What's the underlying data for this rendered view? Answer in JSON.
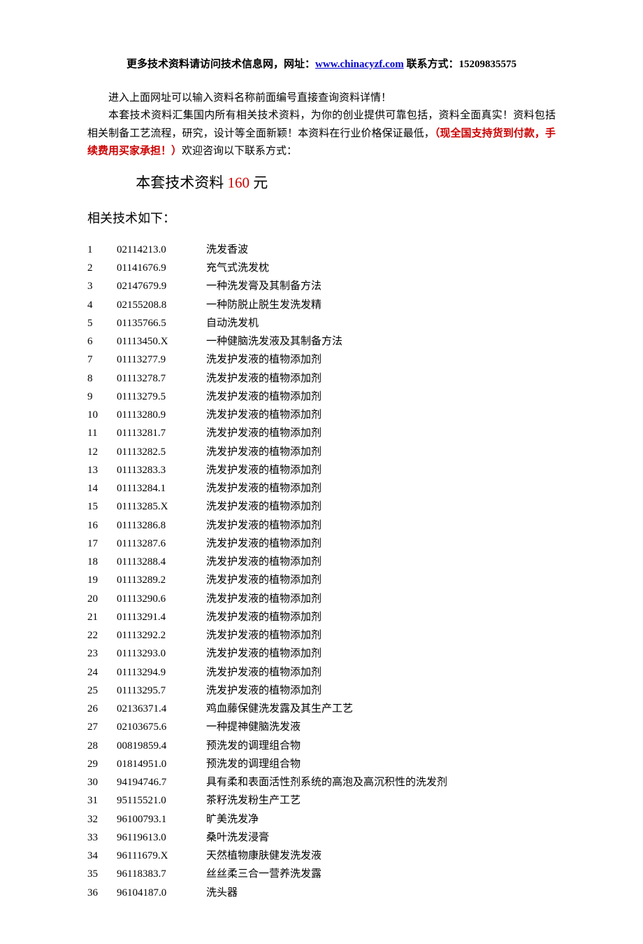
{
  "header": {
    "prefix": "更多技术资料请访问技术信息网，网址：",
    "link_text": "www.chinacyzf.com",
    "contact_label": " 联系方式：",
    "phone": "15209835575"
  },
  "intro": {
    "p1": "进入上面网址可以输入资料名称前面编号直接查询资料详情！",
    "p2a": "本套技术资料汇集国内所有相关技术资料，为你的创业提供可靠包括，资料全面真实！资料包括相关制备工艺流程，研究，设计等全面新颖！本资料在行业价格保证最低，",
    "p2_red": "（现全国支持货到付款，手续费用买家承担！）",
    "p2b": "欢迎咨询以下联系方式：",
    "price_prefix": "本套技术资料 ",
    "price_value": "160",
    "price_suffix": " 元",
    "subhead": "相关技术如下："
  },
  "rows": [
    {
      "n": "1",
      "code": "02114213.0",
      "title": "洗发香波"
    },
    {
      "n": "2",
      "code": "01141676.9",
      "title": "充气式洗发枕"
    },
    {
      "n": "3",
      "code": "02147679.9",
      "title": "一种洗发膏及其制备方法"
    },
    {
      "n": "4",
      "code": "02155208.8",
      "title": "一种防脱止脱生发洗发精"
    },
    {
      "n": "5",
      "code": "01135766.5",
      "title": "自动洗发机"
    },
    {
      "n": "6",
      "code": "01113450.X",
      "title": "一种健脑洗发液及其制备方法"
    },
    {
      "n": "7",
      "code": "01113277.9",
      "title": "洗发护发液的植物添加剂"
    },
    {
      "n": "8",
      "code": "01113278.7",
      "title": "洗发护发液的植物添加剂"
    },
    {
      "n": "9",
      "code": "01113279.5",
      "title": "洗发护发液的植物添加剂"
    },
    {
      "n": "10",
      "code": "01113280.9",
      "title": "洗发护发液的植物添加剂"
    },
    {
      "n": "11",
      "code": "01113281.7",
      "title": "洗发护发液的植物添加剂"
    },
    {
      "n": "12",
      "code": "01113282.5",
      "title": "洗发护发液的植物添加剂"
    },
    {
      "n": "13",
      "code": "01113283.3",
      "title": "洗发护发液的植物添加剂"
    },
    {
      "n": "14",
      "code": "01113284.1",
      "title": "洗发护发液的植物添加剂"
    },
    {
      "n": "15",
      "code": "01113285.X",
      "title": "洗发护发液的植物添加剂"
    },
    {
      "n": "16",
      "code": "01113286.8",
      "title": "洗发护发液的植物添加剂"
    },
    {
      "n": "17",
      "code": "01113287.6",
      "title": "洗发护发液的植物添加剂"
    },
    {
      "n": "18",
      "code": "01113288.4",
      "title": "洗发护发液的植物添加剂"
    },
    {
      "n": "19",
      "code": "01113289.2",
      "title": "洗发护发液的植物添加剂"
    },
    {
      "n": "20",
      "code": "01113290.6",
      "title": "洗发护发液的植物添加剂"
    },
    {
      "n": "21",
      "code": "01113291.4",
      "title": "洗发护发液的植物添加剂"
    },
    {
      "n": "22",
      "code": "01113292.2",
      "title": "洗发护发液的植物添加剂"
    },
    {
      "n": "23",
      "code": "01113293.0",
      "title": "洗发护发液的植物添加剂"
    },
    {
      "n": "24",
      "code": "01113294.9",
      "title": "洗发护发液的植物添加剂"
    },
    {
      "n": "25",
      "code": "01113295.7",
      "title": "洗发护发液的植物添加剂"
    },
    {
      "n": "26",
      "code": "02136371.4",
      "title": "鸡血藤保健洗发露及其生产工艺"
    },
    {
      "n": "27",
      "code": "02103675.6",
      "title": "一种提神健脑洗发液"
    },
    {
      "n": "28",
      "code": "00819859.4",
      "title": "预洗发的调理组合物"
    },
    {
      "n": "29",
      "code": "01814951.0",
      "title": "预洗发的调理组合物"
    },
    {
      "n": "30",
      "code": "94194746.7",
      "title": "具有柔和表面活性剂系统的高泡及高沉积性的洗发剂"
    },
    {
      "n": "31",
      "code": "95115521.0",
      "title": "茶籽洗发粉生产工艺"
    },
    {
      "n": "32",
      "code": "96100793.1",
      "title": "旷美洗发净"
    },
    {
      "n": "33",
      "code": "96119613.0",
      "title": "桑叶洗发浸膏"
    },
    {
      "n": "34",
      "code": "96111679.X",
      "title": "天然植物康肤健发洗发液"
    },
    {
      "n": "35",
      "code": "96118383.7",
      "title": "丝丝柔三合一营养洗发露"
    },
    {
      "n": "36",
      "code": "96104187.0",
      "title": "洗头器"
    }
  ]
}
